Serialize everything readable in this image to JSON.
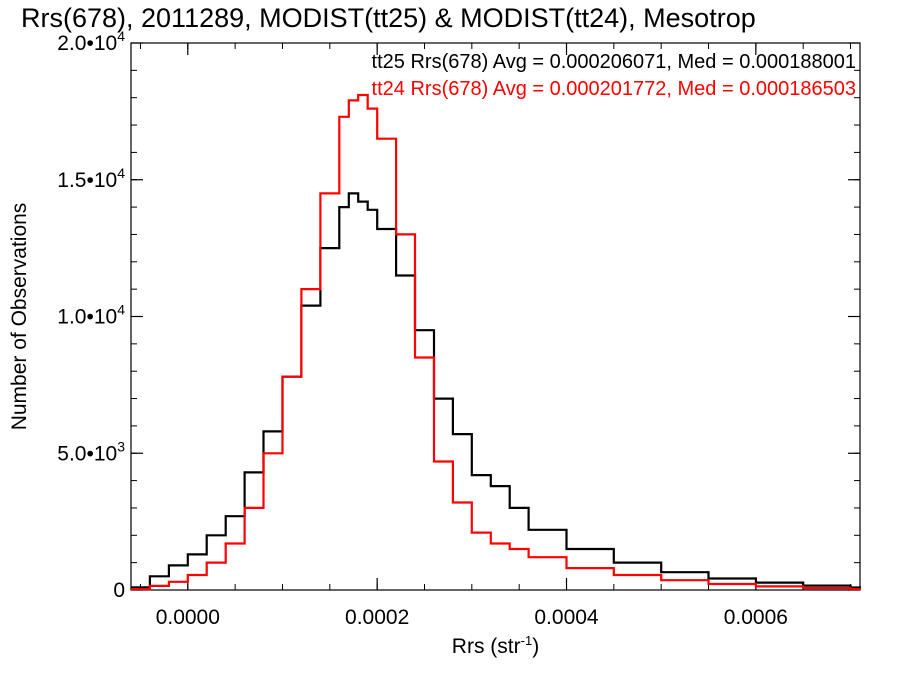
{
  "chart_data": {
    "type": "line",
    "title": "Rrs(678), 2011289, MODIST(tt25) & MODIST(tt24), Mesotrop",
    "xlabel": "Rrs (str",
    "xlabel_sup": "-1",
    "xlabel_close": ")",
    "ylabel": "Number of Observations",
    "xlim": [
      -6e-05,
      0.00071
    ],
    "ylim": [
      0,
      20000
    ],
    "x_ticks": [
      {
        "value": 0.0,
        "label": "0.0000"
      },
      {
        "value": 0.0002,
        "label": "0.0002"
      },
      {
        "value": 0.0004,
        "label": "0.0004"
      },
      {
        "value": 0.0006,
        "label": "0.0006"
      }
    ],
    "y_ticks": [
      {
        "value": 0,
        "mant": "0",
        "exp": ""
      },
      {
        "value": 5000,
        "mant": "5.0•10",
        "exp": "3"
      },
      {
        "value": 10000,
        "mant": "1.0•10",
        "exp": "4"
      },
      {
        "value": 15000,
        "mant": "1.5•10",
        "exp": "4"
      },
      {
        "value": 20000,
        "mant": "2.0•10",
        "exp": "4"
      }
    ],
    "legend_placement": "top-right",
    "series": [
      {
        "name": "tt25 Rrs(678) Avg = 0.000206071, Med = 0.000188001",
        "color": "#000000",
        "x": [
          -6e-05,
          -4e-05,
          -2e-05,
          0.0,
          2e-05,
          4e-05,
          6e-05,
          8e-05,
          0.0001,
          0.00012,
          0.00014,
          0.00016,
          0.00017,
          0.00018,
          0.00019,
          0.0002,
          0.00022,
          0.00024,
          0.00026,
          0.00028,
          0.0003,
          0.00032,
          0.00034,
          0.00036,
          0.0004,
          0.00045,
          0.0005,
          0.00055,
          0.0006,
          0.00065,
          0.0007,
          0.00071
        ],
        "y": [
          100,
          500,
          900,
          1300,
          2000,
          2700,
          4300,
          5800,
          7800,
          10400,
          12500,
          14000,
          14500,
          14200,
          13900,
          13200,
          11500,
          9500,
          7000,
          5700,
          4200,
          3800,
          3000,
          2200,
          1500,
          1000,
          650,
          420,
          270,
          160,
          90,
          80
        ]
      },
      {
        "name": "tt24 Rrs(678) Avg = 0.000201772, Med = 0.000186503",
        "color": "#ff0000",
        "x": [
          -6e-05,
          -4e-05,
          -2e-05,
          0.0,
          2e-05,
          4e-05,
          6e-05,
          8e-05,
          0.0001,
          0.00012,
          0.00014,
          0.00016,
          0.00017,
          0.00018,
          0.00019,
          0.0002,
          0.00022,
          0.00024,
          0.00026,
          0.00028,
          0.0003,
          0.00032,
          0.00034,
          0.00036,
          0.0004,
          0.00045,
          0.0005,
          0.00055,
          0.0006,
          0.00065,
          0.0007,
          0.00071
        ],
        "y": [
          30,
          150,
          300,
          550,
          1000,
          1700,
          3000,
          5000,
          7800,
          11000,
          14500,
          17300,
          17900,
          18100,
          17600,
          16500,
          13000,
          8500,
          4700,
          3200,
          2100,
          1700,
          1500,
          1200,
          800,
          550,
          360,
          220,
          130,
          70,
          30,
          20
        ]
      }
    ]
  }
}
